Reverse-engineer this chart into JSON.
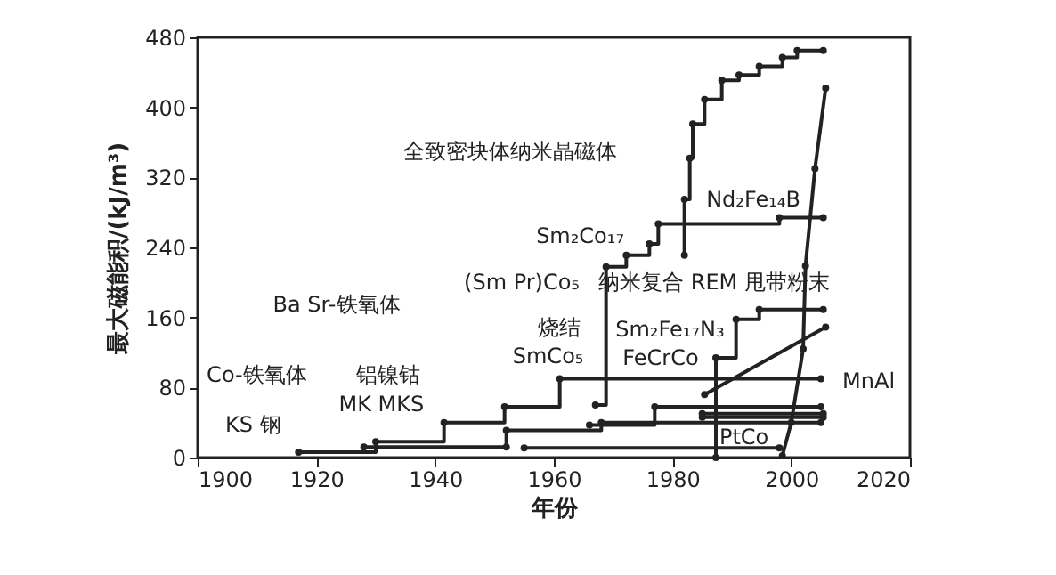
{
  "chart_data": {
    "type": "step",
    "xlabel": "年份",
    "ylabel": "最大磁能积/(kJ/m³)",
    "xlim": [
      1900,
      2020
    ],
    "ylim": [
      0,
      480
    ],
    "xticks": [
      1900,
      1920,
      1940,
      1960,
      1980,
      2000,
      2020
    ],
    "yticks": [
      0,
      80,
      160,
      240,
      320,
      400,
      480
    ],
    "grid": false,
    "marker": "circle",
    "line_style": "solid",
    "series": [
      {
        "color": "#222222",
        "x": [
          1917,
          1930,
          1941.5,
          1951.7,
          1961,
          2005
        ],
        "values": [
          6,
          18,
          40,
          58,
          90,
          90
        ]
      },
      {
        "color": "#222222",
        "x": [
          1928,
          1952,
          1952,
          1968,
          2005
        ],
        "values": [
          12,
          12,
          31,
          40,
          40
        ]
      },
      {
        "color": "#222222",
        "x": [
          1967,
          1968.8,
          1972.2,
          1976.1,
          1977.6,
          1998,
          2005.4
        ],
        "values": [
          60,
          218,
          231,
          244,
          267,
          274,
          274
        ]
      },
      {
        "color": "#222222",
        "x": [
          1982,
          1982,
          1982.9,
          1983.4,
          1985.4,
          1988.3,
          1991.2,
          1994.6,
          1998.5,
          2001,
          2005.4
        ],
        "values": [
          231,
          295,
          342,
          381,
          409,
          431,
          437,
          447,
          457,
          465,
          465
        ]
      },
      {
        "color": "#222222",
        "x": [
          1987.3,
          1987.3,
          1990.7,
          1994.6,
          2005.4
        ],
        "values": [
          0,
          114,
          158,
          169,
          169
        ]
      },
      {
        "color": "#222222",
        "x": [
          1966,
          1977,
          2005
        ],
        "values": [
          37,
          58,
          58
        ]
      },
      {
        "color": "#222222",
        "x": [
          1985,
          2005.4
        ],
        "values": [
          50,
          50
        ]
      },
      {
        "color": "#222222",
        "x": [
          1985,
          2005.4
        ],
        "values": [
          46,
          46
        ]
      },
      {
        "color": "#222222",
        "x": [
          1955,
          1998
        ],
        "values": [
          11,
          11
        ]
      },
      {
        "type": "line",
        "color": "#222222",
        "x": [
          1998.5,
          2000,
          2002,
          2002.4,
          2004,
          2005.8
        ],
        "values": [
          2,
          40,
          124,
          219,
          330,
          422
        ]
      },
      {
        "type": "line",
        "color": "#222222",
        "x": [
          1985.4,
          2005.8
        ],
        "values": [
          72,
          149
        ]
      }
    ],
    "annotations": [
      "KS 钢",
      "Co-铁氧体",
      "铝镍钴",
      "MK MKS",
      "Ba Sr-铁氧体",
      "烧结",
      "SmCo₅",
      "(Sm Pr)Co₅",
      "纳米复合 REM 甩带粉末",
      "Sm₂Fe₁₇N₃",
      "FeCrCo",
      "MnAl",
      "PtCo",
      "Sm₂Co₁₇",
      "Nd₂Fe₁₄B",
      "全致密块体纳米晶磁体"
    ]
  }
}
